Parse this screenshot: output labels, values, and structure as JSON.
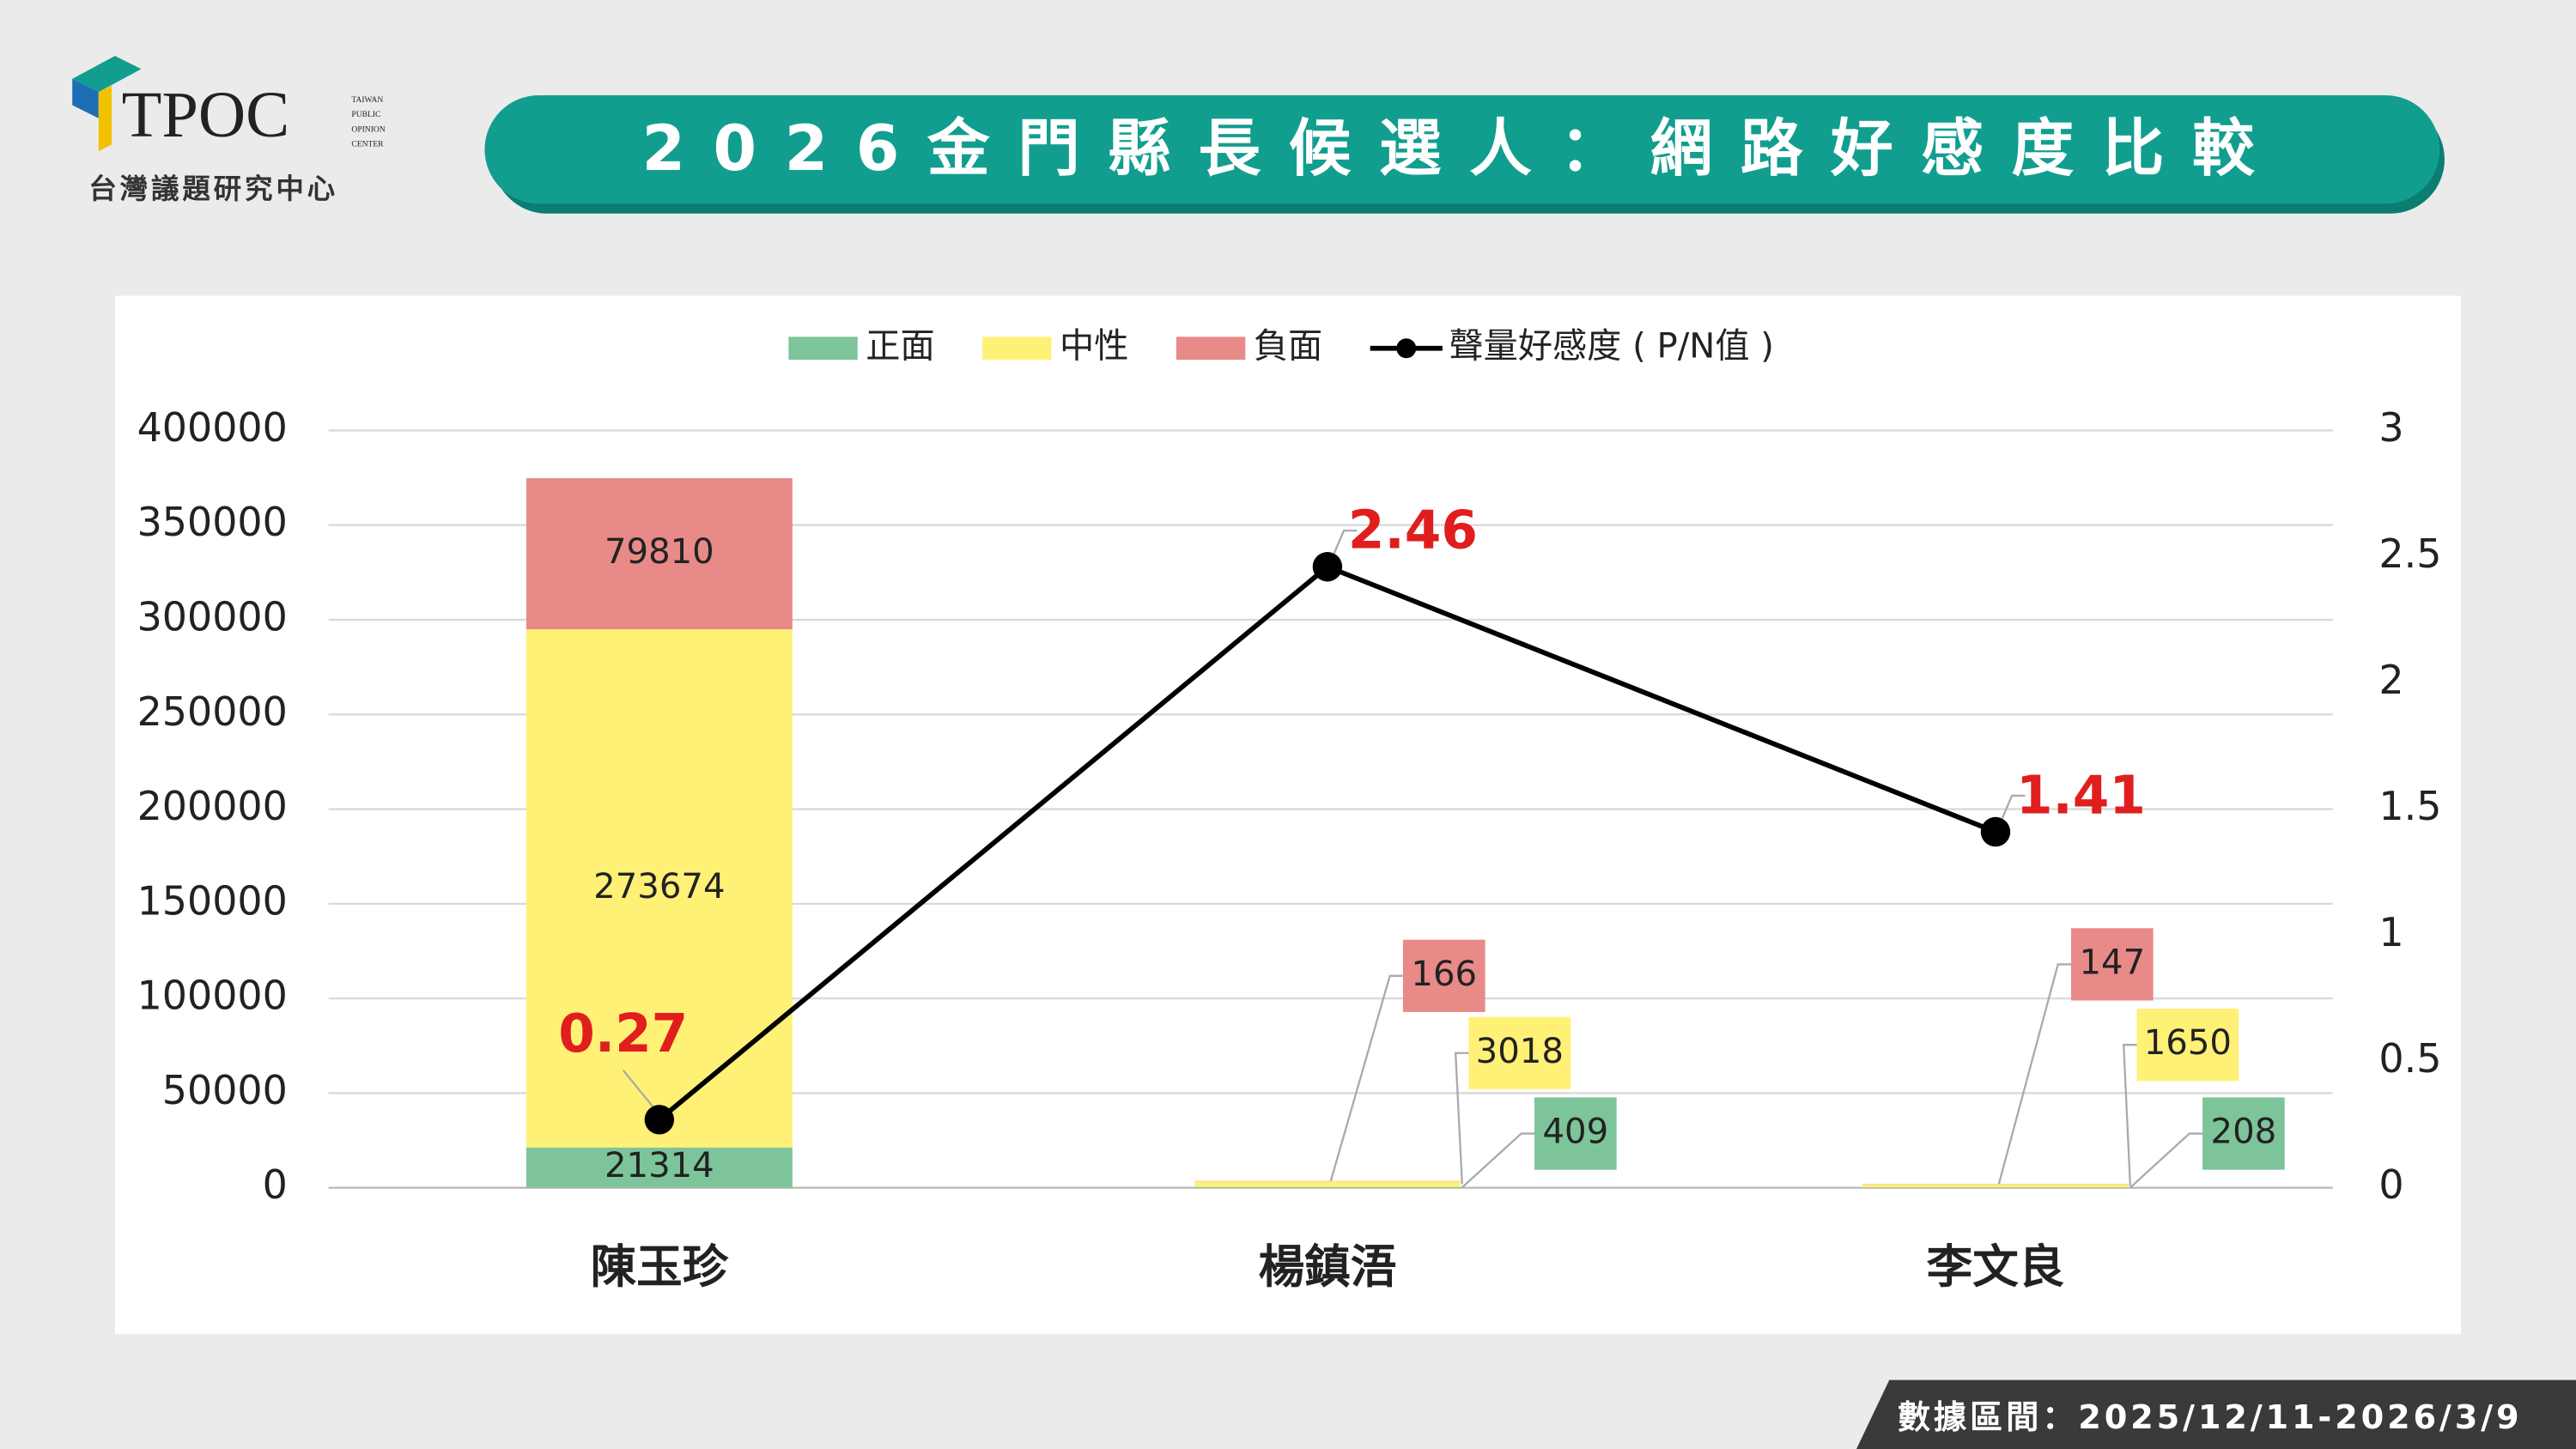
{
  "header": {
    "logo": "TPOC",
    "logo_en": [
      "TAIWAN",
      "PUBLIC",
      "OPINION",
      "CENTER"
    ],
    "org": "台灣議題研究中心"
  },
  "chart_data": {
    "type": "bar",
    "stacked": true,
    "title": "2026金門縣長候選人：網路好感度比較",
    "categories": [
      "陳玉珍",
      "楊鎮浯",
      "李文良"
    ],
    "series": [
      {
        "name": "正面",
        "color": "#7dc49a",
        "values": [
          21314,
          409,
          208
        ]
      },
      {
        "name": "中性",
        "color": "#fff176",
        "values": [
          273674,
          3018,
          1650
        ]
      },
      {
        "name": "負面",
        "color": "#e88a88",
        "values": [
          79810,
          166,
          147
        ]
      },
      {
        "name": "聲量好感度 ( P/N值 )",
        "type": "line",
        "axis": "y2",
        "color": "#000000",
        "label_color": "#e01e1e",
        "values": [
          0.27,
          2.46,
          1.41
        ]
      }
    ],
    "ylim": [
      0,
      400000
    ],
    "yticks": [
      0,
      50000,
      100000,
      150000,
      200000,
      250000,
      300000,
      350000,
      400000
    ],
    "y2lim": [
      0,
      3
    ],
    "y2ticks": [
      0,
      0.5,
      1,
      1.5,
      2,
      2.5,
      3
    ],
    "grid": true,
    "legend": "top"
  },
  "footer": {
    "date_range": "數據區間：2025/12/11-2026/3/9"
  }
}
